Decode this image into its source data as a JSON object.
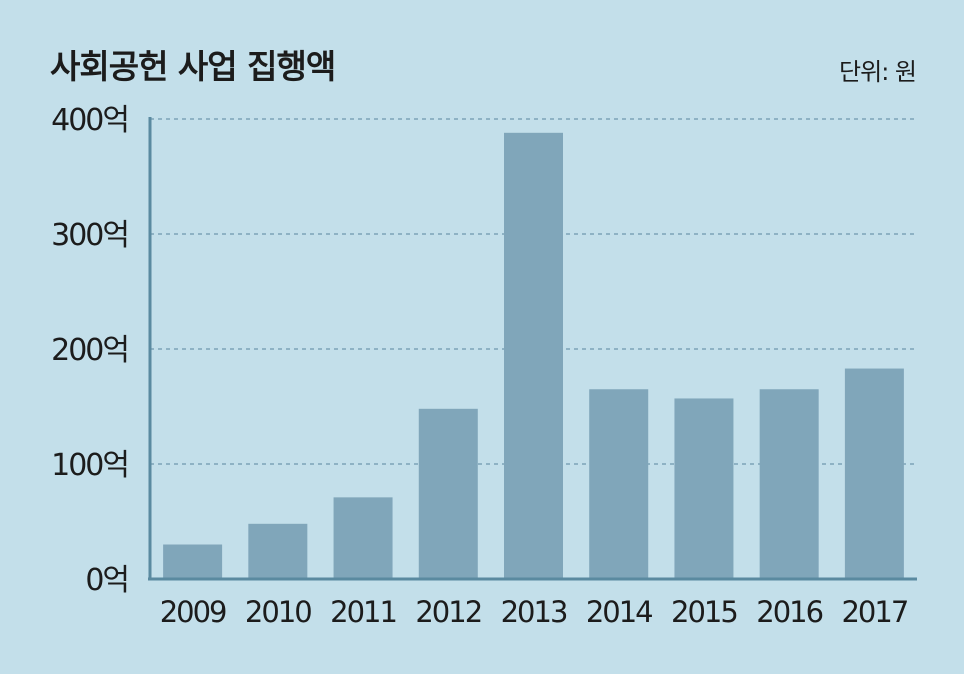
{
  "title": "사회공헌 사업 집행액",
  "unit_label": "단위: 원",
  "chart_data": {
    "type": "bar",
    "categories": [
      "2009",
      "2010",
      "2011",
      "2012",
      "2013",
      "2014",
      "2015",
      "2016",
      "2017"
    ],
    "values": [
      30,
      48,
      71,
      148,
      388,
      165,
      157,
      165,
      183
    ],
    "ylim": [
      0,
      400
    ],
    "yticks": [
      0,
      100,
      200,
      300,
      400
    ],
    "ytick_labels": [
      "0억",
      "100억",
      "200억",
      "300억",
      "400억"
    ],
    "grid": true,
    "bar_color": "#80a6ba",
    "axis_color": "#5a8aa0"
  }
}
